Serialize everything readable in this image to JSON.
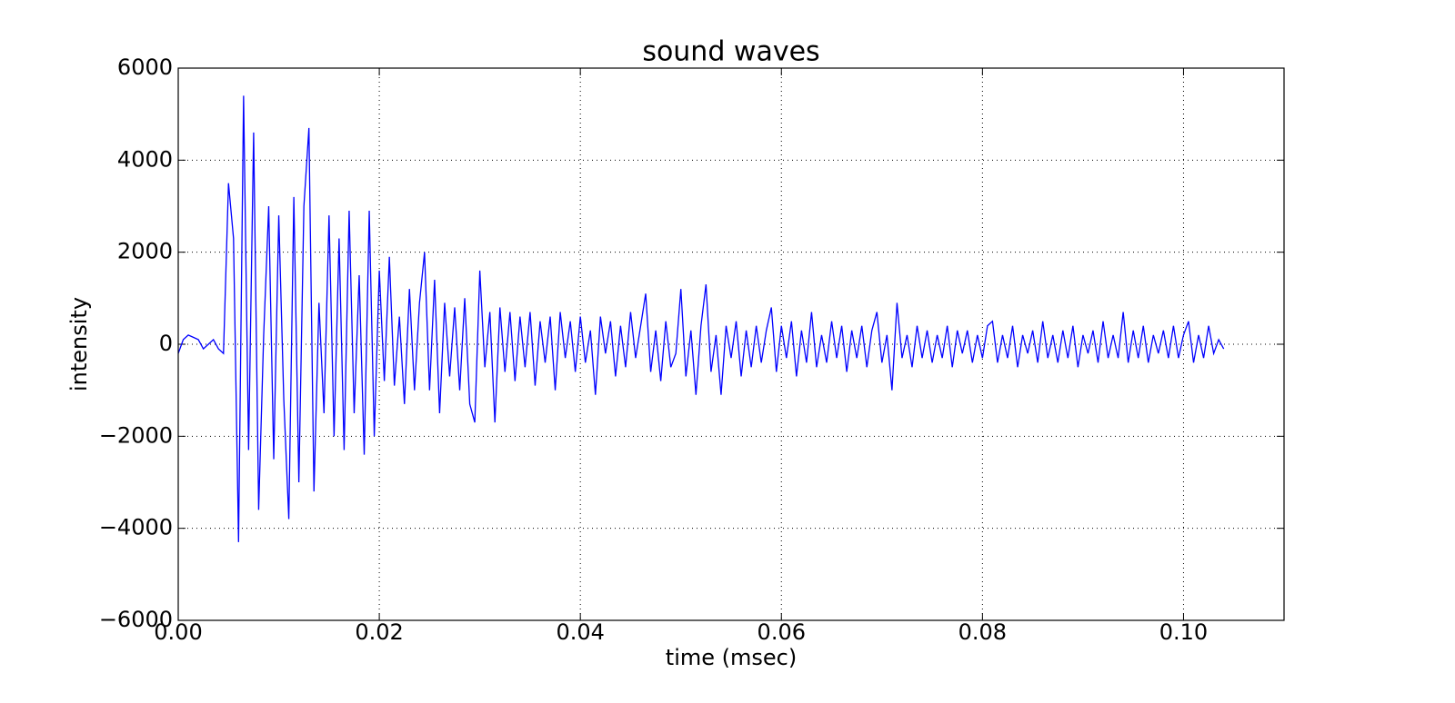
{
  "chart_data": {
    "type": "line",
    "title": "sound waves",
    "x_label": "time (msec)",
    "y_label": "intensity",
    "x": [
      0,
      0.0005,
      0.001,
      0.0015,
      0.002,
      0.0025,
      0.003,
      0.0035,
      0.004,
      0.0045,
      0.005,
      0.0055,
      0.006,
      0.0065,
      0.007,
      0.0075,
      0.008,
      0.0085,
      0.009,
      0.0095,
      0.01,
      0.0105,
      0.011,
      0.0115,
      0.012,
      0.0125,
      0.013,
      0.0135,
      0.014,
      0.0145,
      0.015,
      0.0155,
      0.016,
      0.0165,
      0.017,
      0.0175,
      0.018,
      0.0185,
      0.019,
      0.0195,
      0.02,
      0.0205,
      0.021,
      0.0215,
      0.022,
      0.0225,
      0.023,
      0.0235,
      0.024,
      0.0245,
      0.025,
      0.0255,
      0.026,
      0.0265,
      0.027,
      0.0275,
      0.028,
      0.0285,
      0.029,
      0.0295,
      0.03,
      0.0305,
      0.031,
      0.0315,
      0.032,
      0.0325,
      0.033,
      0.0335,
      0.034,
      0.0345,
      0.035,
      0.0355,
      0.036,
      0.0365,
      0.037,
      0.0375,
      0.038,
      0.0385,
      0.039,
      0.0395,
      0.04,
      0.0405,
      0.041,
      0.0415,
      0.042,
      0.0425,
      0.043,
      0.0435,
      0.044,
      0.0445,
      0.045,
      0.0455,
      0.046,
      0.0465,
      0.047,
      0.0475,
      0.048,
      0.0485,
      0.049,
      0.0495,
      0.05,
      0.0505,
      0.051,
      0.0515,
      0.052,
      0.0525,
      0.053,
      0.0535,
      0.054,
      0.0545,
      0.055,
      0.0555,
      0.056,
      0.0565,
      0.057,
      0.0575,
      0.058,
      0.0585,
      0.059,
      0.0595,
      0.06,
      0.0605,
      0.061,
      0.0615,
      0.062,
      0.0625,
      0.063,
      0.0635,
      0.064,
      0.0645,
      0.065,
      0.0655,
      0.066,
      0.0665,
      0.067,
      0.0675,
      0.068,
      0.0685,
      0.069,
      0.0695,
      0.07,
      0.0705,
      0.071,
      0.0715,
      0.072,
      0.0725,
      0.073,
      0.0735,
      0.074,
      0.0745,
      0.075,
      0.0755,
      0.076,
      0.0765,
      0.077,
      0.0775,
      0.078,
      0.0785,
      0.079,
      0.0795,
      0.08,
      0.0805,
      0.081,
      0.0815,
      0.082,
      0.0825,
      0.083,
      0.0835,
      0.084,
      0.0845,
      0.085,
      0.0855,
      0.086,
      0.0865,
      0.087,
      0.0875,
      0.088,
      0.0885,
      0.089,
      0.0895,
      0.09,
      0.0905,
      0.091,
      0.0915,
      0.092,
      0.0925,
      0.093,
      0.0935,
      0.094,
      0.0945,
      0.095,
      0.0955,
      0.096,
      0.0965,
      0.097,
      0.0975,
      0.098,
      0.0985,
      0.099,
      0.0995,
      0.1,
      0.1005,
      0.101,
      0.1015,
      0.102,
      0.1025,
      0.103,
      0.1035,
      0.104
    ],
    "values": [
      -200,
      100,
      200,
      150,
      100,
      -100,
      0,
      100,
      -100,
      -200,
      3500,
      2300,
      -4300,
      5400,
      -2300,
      4600,
      -3600,
      200,
      3000,
      -2500,
      2800,
      -1200,
      -3800,
      3200,
      -3000,
      3000,
      4700,
      -3200,
      900,
      -1500,
      2800,
      -2000,
      2300,
      -2300,
      2900,
      -1500,
      1500,
      -2400,
      2900,
      -2000,
      1600,
      -800,
      1900,
      -900,
      600,
      -1300,
      1200,
      -1000,
      900,
      2000,
      -1000,
      1400,
      -1500,
      900,
      -700,
      800,
      -1000,
      1000,
      -1300,
      -1700,
      1600,
      -500,
      700,
      -1700,
      800,
      -600,
      700,
      -800,
      600,
      -500,
      700,
      -900,
      500,
      -400,
      600,
      -1000,
      700,
      -300,
      500,
      -600,
      600,
      -400,
      300,
      -1100,
      600,
      -200,
      500,
      -700,
      400,
      -500,
      700,
      -300,
      400,
      1100,
      -600,
      300,
      -800,
      500,
      -500,
      -200,
      1200,
      -700,
      300,
      -1100,
      400,
      1300,
      -600,
      200,
      -1100,
      400,
      -300,
      500,
      -700,
      300,
      -500,
      400,
      -400,
      300,
      800,
      -600,
      400,
      -300,
      500,
      -700,
      300,
      -400,
      700,
      -500,
      200,
      -400,
      500,
      -300,
      400,
      -600,
      300,
      -300,
      400,
      -500,
      300,
      700,
      -400,
      200,
      -1000,
      900,
      -300,
      200,
      -500,
      400,
      -300,
      300,
      -400,
      200,
      -300,
      400,
      -500,
      300,
      -200,
      300,
      -400,
      200,
      -300,
      400,
      500,
      -400,
      200,
      -300,
      400,
      -500,
      200,
      -200,
      300,
      -400,
      500,
      -300,
      200,
      -400,
      300,
      -300,
      400,
      -500,
      200,
      -200,
      300,
      -400,
      500,
      -300,
      200,
      -300,
      700,
      -400,
      300,
      -300,
      400,
      -400,
      200,
      -200,
      300,
      -300,
      400,
      -300,
      200,
      500,
      -400,
      200,
      -300,
      400,
      -200,
      100,
      -100
    ],
    "color": "#0000ff",
    "xlim": [
      0,
      0.11
    ],
    "xticks": [
      {
        "value": 0,
        "label": "0.00"
      },
      0.02,
      0.04,
      0.06,
      0.08,
      {
        "value": 0.1,
        "label": "0.10"
      }
    ],
    "ylim": [
      -6000,
      6000
    ],
    "yticks": [
      {
        "value": -6000,
        "label": "−6000"
      },
      {
        "value": -4000,
        "label": "−4000"
      },
      {
        "value": -2000,
        "label": "−2000"
      },
      0,
      2000,
      4000,
      6000
    ],
    "grid": true
  }
}
